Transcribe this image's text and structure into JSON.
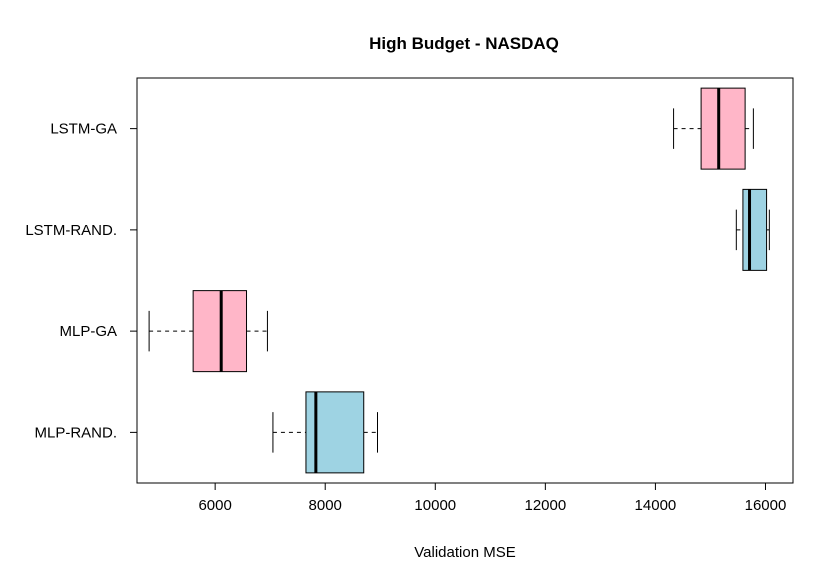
{
  "chart_data": {
    "type": "boxplot",
    "orientation": "horizontal",
    "title": "High Budget - NASDAQ",
    "xlabel": "Validation MSE",
    "ylabel": "",
    "xlim": [
      4580,
      16500
    ],
    "x_ticks": [
      6000,
      8000,
      10000,
      12000,
      14000,
      16000
    ],
    "x_tick_labels": [
      "6000",
      "8000",
      "10000",
      "12000",
      "14000",
      "16000"
    ],
    "categories": [
      "LSTM-GA",
      "LSTM-RAND.",
      "MLP-GA",
      "MLP-RAND."
    ],
    "grid": false,
    "boxes": [
      {
        "label": "LSTM-GA",
        "whisker_low": 14330,
        "q1": 14830,
        "median": 15150,
        "q3": 15630,
        "whisker_high": 15780,
        "color": "#FFB6C8"
      },
      {
        "label": "LSTM-RAND.",
        "whisker_low": 15470,
        "q1": 15590,
        "median": 15710,
        "q3": 16020,
        "whisker_high": 16070,
        "color": "#9ED3E3"
      },
      {
        "label": "MLP-GA",
        "whisker_low": 4800,
        "q1": 5600,
        "median": 6110,
        "q3": 6570,
        "whisker_high": 6950,
        "color": "#FFB6C8"
      },
      {
        "label": "MLP-RAND.",
        "whisker_low": 7050,
        "q1": 7650,
        "median": 7830,
        "q3": 8700,
        "whisker_high": 8950,
        "color": "#9ED3E3"
      }
    ]
  }
}
